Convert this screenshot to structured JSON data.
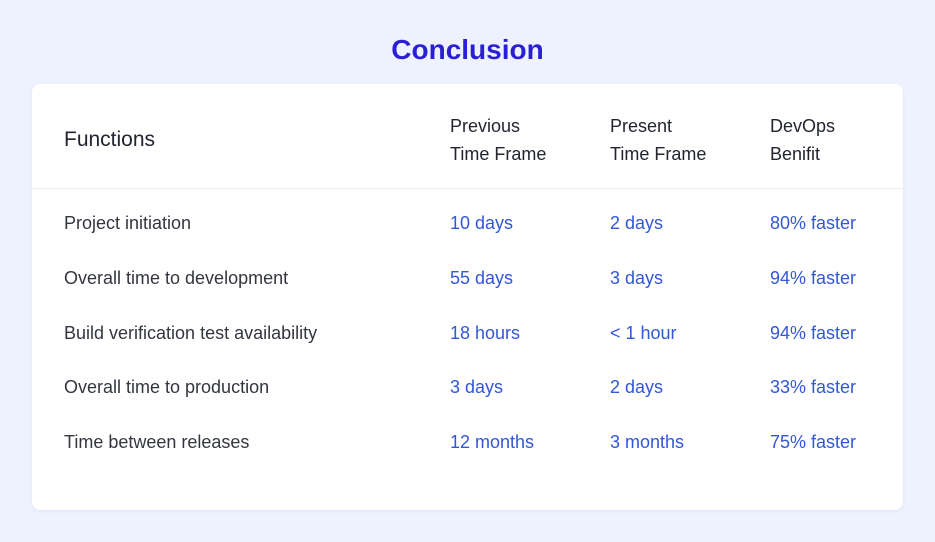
{
  "page": {
    "title": "Conclusion"
  },
  "table": {
    "headers": {
      "functions": "Functions",
      "previous": [
        "Previous",
        "Time Frame"
      ],
      "present": [
        "Present",
        "Time Frame"
      ],
      "devops": [
        "DevOps",
        "Benifit"
      ]
    },
    "rows": [
      {
        "function": "Project initiation",
        "previous": "10 days",
        "present": "2 days",
        "benefit": "80% faster"
      },
      {
        "function": "Overall time to development",
        "previous": "55 days",
        "present": "3 days",
        "benefit": "94% faster"
      },
      {
        "function": "Build verification test availability",
        "previous": "18 hours",
        "present": "< 1 hour",
        "benefit": "94% faster"
      },
      {
        "function": "Overall time to production",
        "previous": "3 days",
        "present": "2 days",
        "benefit": "33% faster"
      },
      {
        "function": "Time between releases",
        "previous": "12 months",
        "present": "3 months",
        "benefit": "75% faster"
      }
    ]
  },
  "colors": {
    "background": "#eef1fe",
    "title": "#2b1fd6",
    "value": "#3257d8",
    "text": "#33363f"
  }
}
